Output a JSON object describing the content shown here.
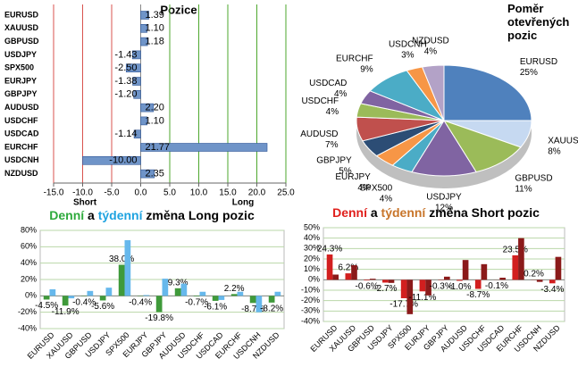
{
  "chart_data": [
    {
      "type": "hbar",
      "title": "Pozice",
      "categories": [
        "EURUSD",
        "XAUUSD",
        "GBPUSD",
        "USDJPY",
        "SPX500",
        "EURJPY",
        "GBPJPY",
        "AUDUSD",
        "USDCHF",
        "USDCAD",
        "EURCHF",
        "USDCNH",
        "NZDUSD"
      ],
      "values": [
        1.39,
        1.1,
        1.18,
        -1.43,
        -2.5,
        -1.38,
        -1.2,
        2.2,
        1.1,
        -1.14,
        21.77,
        -10,
        2.35
      ],
      "value_labels": [
        "1.39",
        "1.10",
        "1.18",
        "-1.43",
        "-2.50",
        "-1.38",
        "-1.20",
        "2.20",
        "1.10",
        "-1.14",
        "21.77",
        "-10.00",
        "2.35"
      ],
      "color": "#6f94c8",
      "xlim": [
        -15,
        25
      ],
      "xticks": [
        {
          "value": -15,
          "label": "-15.0"
        },
        {
          "value": -10,
          "label": "-10.0"
        },
        {
          "value": -5,
          "label": "-5.0"
        },
        {
          "value": 0,
          "label": "0.0"
        },
        {
          "value": 5,
          "label": "5.0"
        },
        {
          "value": 10,
          "label": "10.0"
        },
        {
          "value": 15,
          "label": "15.0"
        },
        {
          "value": 20,
          "label": "20.0"
        },
        {
          "value": 25,
          "label": "25.0"
        }
      ],
      "grid": true,
      "annotations": [
        "Short",
        "Long"
      ]
    },
    {
      "type": "pie",
      "title": "Poměr otevřených pozic",
      "categories": [
        "EURUSD",
        "XAUUSD",
        "GBPUSD",
        "USDJPY",
        "SPX500",
        "EURJPY",
        "GBPJPY",
        "AUDUSD",
        "USDCHF",
        "USDCAD",
        "EURCHF",
        "USDCNH",
        "NZDUSD"
      ],
      "values": [
        25,
        8,
        11,
        12,
        4,
        4,
        5,
        7,
        4,
        4,
        9,
        3,
        4
      ],
      "value_labels": [
        "25%",
        "8%",
        "11%",
        "12%",
        "4%",
        "4%",
        "5%",
        "7%",
        "4%",
        "4%",
        "9%",
        "3%",
        "4%"
      ],
      "colors": [
        "#4f81bd",
        "#c6d9f1",
        "#9bbb59",
        "#8064a2",
        "#4bacc6",
        "#f79646",
        "#2c4d75",
        "#c0504d",
        "#9bbb59",
        "#8064a2",
        "#4bacc6",
        "#f79646",
        "#b3a2c7"
      ]
    },
    {
      "type": "bar",
      "title_parts": [
        {
          "text": "Denní",
          "color": "#2eaa3c"
        },
        {
          "text": "a",
          "color": "#000000"
        },
        {
          "text": "týdenní",
          "color": "#1fa3e0"
        },
        {
          "text": "změna Long pozic",
          "color": "#000000"
        }
      ],
      "categories": [
        "EURUSD",
        "XAUUSD",
        "GBPUSD",
        "USDJPY",
        "SPX500",
        "EURJPY",
        "GBPJPY",
        "AUDUSD",
        "USDCHF",
        "USDCAD",
        "EURCHF",
        "USDCNH",
        "NZDUSD"
      ],
      "series": [
        {
          "color": "#3f9a3a",
          "values": [
            -4.5,
            -11.9,
            -0.4,
            -5.6,
            38.0,
            -0.4,
            -19.8,
            9.3,
            -0.7,
            -6.1,
            2.2,
            -8.7,
            -8.2
          ],
          "value_labels": [
            "-4.5%",
            "-11.9%",
            "-0.4%",
            "-5.6%",
            "38.0%",
            "-0.4%",
            "-19.8%",
            "9.3%",
            "-0.7%",
            "-6.1%",
            "2.2%",
            "-8.7%",
            "-8.2%"
          ]
        },
        {
          "color": "#66b8ec",
          "values": [
            8,
            -3,
            6,
            10,
            68,
            1,
            21,
            15,
            5,
            -5,
            5,
            -20,
            5
          ]
        }
      ],
      "ylim": [
        -40,
        80
      ],
      "yticks": [
        {
          "value": -40,
          "label": "-40%"
        },
        {
          "value": -20,
          "label": "-20%"
        },
        {
          "value": 0,
          "label": "0%"
        },
        {
          "value": 20,
          "label": "20%"
        },
        {
          "value": 40,
          "label": "40%"
        },
        {
          "value": 60,
          "label": "60%"
        },
        {
          "value": 80,
          "label": "80%"
        }
      ],
      "grid": true
    },
    {
      "type": "bar",
      "title_parts": [
        {
          "text": "Denní",
          "color": "#e0201c"
        },
        {
          "text": "a",
          "color": "#000000"
        },
        {
          "text": "týdenní",
          "color": "#c8752a"
        },
        {
          "text": "změna Short pozic",
          "color": "#000000"
        }
      ],
      "categories": [
        "EURUSD",
        "XAUUSD",
        "GBPUSD",
        "USDJPY",
        "SPX500",
        "EURJPY",
        "GBPJPY",
        "AUDUSD",
        "USDCHF",
        "USDCAD",
        "EURCHF",
        "USDCNH",
        "NZDUSD"
      ],
      "series": [
        {
          "color": "#d21f1f",
          "values": [
            24.3,
            6.2,
            -0.6,
            -2.7,
            -17.7,
            -11.1,
            -0.3,
            -1.0,
            -8.7,
            -0.1,
            23.5,
            0.2,
            -3.4
          ],
          "value_labels": [
            "24.3%",
            "6.2%",
            "-0.6%",
            "-2.7%",
            "-17.7%",
            "-11.1%",
            "-0.3%",
            "-1.0%",
            "-8.7%",
            "-0.1%",
            "23.5%",
            "0.2%",
            "-3.4%"
          ]
        },
        {
          "color": "#8b1a1a",
          "values": [
            5,
            14,
            1,
            -3,
            -33,
            -15,
            3,
            19,
            15,
            2,
            40,
            -2,
            22
          ]
        }
      ],
      "ylim": [
        -40,
        50
      ],
      "yticks": [
        {
          "value": -40,
          "label": "-40%"
        },
        {
          "value": -30,
          "label": "-30%"
        },
        {
          "value": -20,
          "label": "-20%"
        },
        {
          "value": -10,
          "label": "-10%"
        },
        {
          "value": 0,
          "label": "0%"
        },
        {
          "value": 10,
          "label": "10%"
        },
        {
          "value": 20,
          "label": "20%"
        },
        {
          "value": 30,
          "label": "30%"
        },
        {
          "value": 40,
          "label": "40%"
        },
        {
          "value": 50,
          "label": "50%"
        }
      ],
      "grid": true
    }
  ]
}
